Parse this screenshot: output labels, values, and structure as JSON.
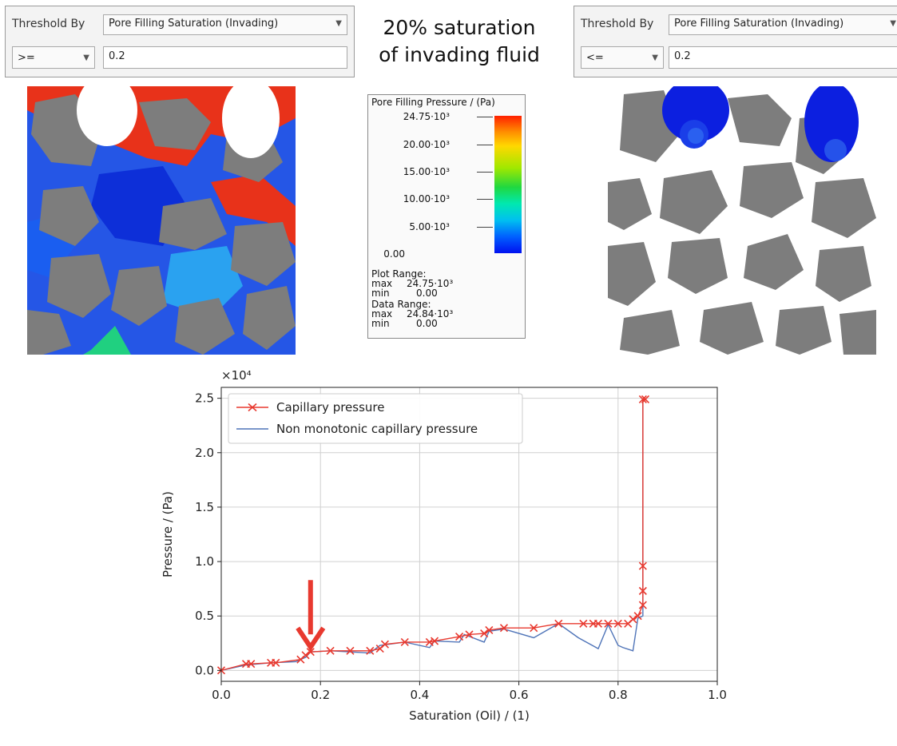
{
  "left_panel": {
    "threshold_label": "Threshold By",
    "threshold_value": "Pore Filling Saturation (Invading)",
    "operator": ">=",
    "value": "0.2"
  },
  "right_panel": {
    "threshold_label": "Threshold By",
    "threshold_value": "Pore Filling Saturation (Invading)",
    "operator": "<=",
    "value": "0.2"
  },
  "caption": {
    "line1": "20%  saturation",
    "line2": "of invading fluid"
  },
  "colorbar": {
    "title": "Pore Filling Pressure / (Pa)",
    "ticks": [
      "24.75·10³",
      "20.00·10³",
      "15.00·10³",
      "10.00·10³",
      "5.00·10³",
      "0.00"
    ],
    "plot_range_label": "Plot Range:",
    "plot_max_label": "max",
    "plot_max": "24.75·10³",
    "plot_min_label": "min",
    "plot_min": "0.00",
    "data_range_label": "Data Range:",
    "data_max_label": "max",
    "data_max": "24.84·10³",
    "data_min_label": "min",
    "data_min": "0.00"
  },
  "icons": {
    "dropdown": "chevron-down-icon",
    "annotation": "arrow-down-icon"
  },
  "colors": {
    "invading_red": "#e8321a",
    "pore_blue": "#1a3ee8",
    "grain_gray": "#7d7d7d",
    "series1": "#e8392f",
    "series2": "#4f74b8"
  },
  "chart_data": {
    "type": "line",
    "xlabel": "Saturation (Oil) / (1)",
    "ylabel": "Pressure / (Pa)",
    "y_multiplier": "×10⁴",
    "xlim": [
      0.0,
      1.0
    ],
    "ylim": [
      -0.1,
      2.6
    ],
    "xticks": [
      "0.0",
      "0.2",
      "0.4",
      "0.6",
      "0.8",
      "1.0"
    ],
    "yticks": [
      "0.0",
      "0.5",
      "1.0",
      "1.5",
      "2.0",
      "2.5"
    ],
    "grid": true,
    "legend_position": "top-left",
    "annotation": {
      "type": "arrow",
      "x": 0.18,
      "y": 0.17,
      "color": "#e8392f"
    },
    "series": [
      {
        "name": "Capillary pressure",
        "marker": "x",
        "color": "#e8392f",
        "x": [
          0.0,
          0.05,
          0.06,
          0.1,
          0.11,
          0.16,
          0.17,
          0.18,
          0.22,
          0.26,
          0.3,
          0.32,
          0.33,
          0.37,
          0.42,
          0.43,
          0.48,
          0.5,
          0.53,
          0.54,
          0.57,
          0.63,
          0.68,
          0.73,
          0.75,
          0.76,
          0.78,
          0.8,
          0.82,
          0.83,
          0.84,
          0.85,
          0.85,
          0.85,
          0.85,
          0.855
        ],
        "y": [
          0.0,
          0.06,
          0.06,
          0.07,
          0.07,
          0.1,
          0.14,
          0.17,
          0.18,
          0.18,
          0.18,
          0.2,
          0.24,
          0.26,
          0.26,
          0.27,
          0.31,
          0.33,
          0.34,
          0.37,
          0.39,
          0.39,
          0.43,
          0.43,
          0.43,
          0.43,
          0.43,
          0.43,
          0.43,
          0.47,
          0.5,
          0.6,
          0.73,
          0.96,
          2.49,
          2.49
        ]
      },
      {
        "name": "Non monotonic capillary pressure",
        "color": "#4f74b8",
        "x": [
          0.0,
          0.05,
          0.1,
          0.15,
          0.17,
          0.18,
          0.22,
          0.3,
          0.32,
          0.37,
          0.42,
          0.43,
          0.48,
          0.49,
          0.53,
          0.54,
          0.57,
          0.63,
          0.68,
          0.72,
          0.76,
          0.78,
          0.8,
          0.81,
          0.83,
          0.84,
          0.85,
          0.85
        ],
        "y": [
          0.0,
          0.05,
          0.07,
          0.08,
          0.12,
          0.17,
          0.18,
          0.16,
          0.23,
          0.26,
          0.21,
          0.27,
          0.26,
          0.33,
          0.26,
          0.36,
          0.38,
          0.3,
          0.43,
          0.3,
          0.2,
          0.42,
          0.23,
          0.21,
          0.18,
          0.48,
          0.5,
          2.49
        ]
      }
    ]
  }
}
